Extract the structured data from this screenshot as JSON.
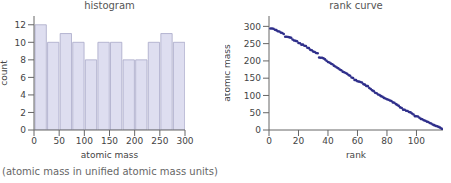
{
  "chart_data": [
    {
      "type": "histogram",
      "title": "histogram",
      "x_label": "atomic mass",
      "y_label": "count",
      "bins": [
        0,
        25,
        50,
        75,
        100,
        125,
        150,
        175,
        200,
        225,
        250,
        275,
        300
      ],
      "counts": [
        12,
        10,
        11,
        10,
        8,
        10,
        10,
        8,
        8,
        10,
        11,
        10
      ],
      "color": "#dedef0",
      "xlim": [
        0,
        300
      ],
      "xticks": [
        0,
        50,
        100,
        150,
        200,
        250,
        300
      ],
      "ylim": [
        0,
        13
      ],
      "yticks": [
        0,
        2,
        4,
        6,
        8,
        10,
        12
      ]
    },
    {
      "type": "scatter",
      "title": "rank curve",
      "x_label": "rank",
      "y_label": "atomic mass",
      "x": [
        1,
        2,
        3,
        4,
        5,
        6,
        7,
        8,
        9,
        10,
        11,
        12,
        13,
        14,
        15,
        16,
        17,
        18,
        19,
        20,
        21,
        22,
        23,
        24,
        25,
        26,
        27,
        28,
        29,
        30,
        31,
        32,
        33,
        34,
        35,
        36,
        37,
        38,
        39,
        40,
        41,
        42,
        43,
        44,
        45,
        46,
        47,
        48,
        49,
        50,
        51,
        52,
        53,
        54,
        55,
        56,
        57,
        58,
        59,
        60,
        61,
        62,
        63,
        64,
        65,
        66,
        67,
        68,
        69,
        70,
        71,
        72,
        73,
        74,
        75,
        76,
        77,
        78,
        79,
        80,
        81,
        82,
        83,
        84,
        85,
        86,
        87,
        88,
        89,
        90,
        91,
        92,
        93,
        94,
        95,
        96,
        97,
        98,
        99,
        100,
        101,
        102,
        103,
        104,
        105,
        106,
        107,
        108,
        109,
        110,
        111,
        112,
        113,
        114,
        115,
        116,
        117,
        118
      ],
      "values": [
        294,
        294,
        293,
        290,
        289,
        286,
        285,
        282,
        281,
        278,
        270,
        270,
        269,
        268,
        267,
        262,
        259,
        258,
        257,
        252,
        251,
        247,
        247,
        244,
        243,
        238.03,
        237,
        232.04,
        231.04,
        227,
        226,
        223,
        222,
        210,
        209,
        208.98,
        207.2,
        204.38,
        200.59,
        196.97,
        195.08,
        192.22,
        190.23,
        186.21,
        183.84,
        180.95,
        178.49,
        174.97,
        173.05,
        168.93,
        167.26,
        164.93,
        162.5,
        158.93,
        157.25,
        151.96,
        150.36,
        145,
        144.24,
        140.91,
        140.12,
        138.91,
        137.33,
        132.91,
        131.29,
        127.6,
        126.9,
        121.76,
        118.71,
        114.82,
        112.41,
        107.87,
        106.42,
        102.91,
        101.07,
        98,
        95.95,
        92.91,
        91.22,
        88.91,
        87.62,
        85.47,
        83.8,
        79.9,
        78.97,
        74.92,
        72.63,
        69.72,
        65.38,
        63.55,
        58.93,
        58.69,
        55.845,
        54.94,
        52,
        50.94,
        47.87,
        44.96,
        40.08,
        39.95,
        39.1,
        35.45,
        32.06,
        30.97,
        28.085,
        26.98,
        24.305,
        22.99,
        20.18,
        18.998,
        15.999,
        14.007,
        12.011,
        10.81,
        9.012,
        6.94,
        4.0026,
        1.008
      ],
      "color": "#2e2e8a",
      "marker": "circle",
      "xlim": [
        0,
        118
      ],
      "xticks": [
        0,
        20,
        40,
        60,
        80,
        100
      ],
      "ylim": [
        0,
        330
      ],
      "yticks": [
        0,
        50,
        100,
        150,
        200,
        250,
        300
      ]
    }
  ],
  "caption": "(atomic mass in unified atomic mass units)"
}
